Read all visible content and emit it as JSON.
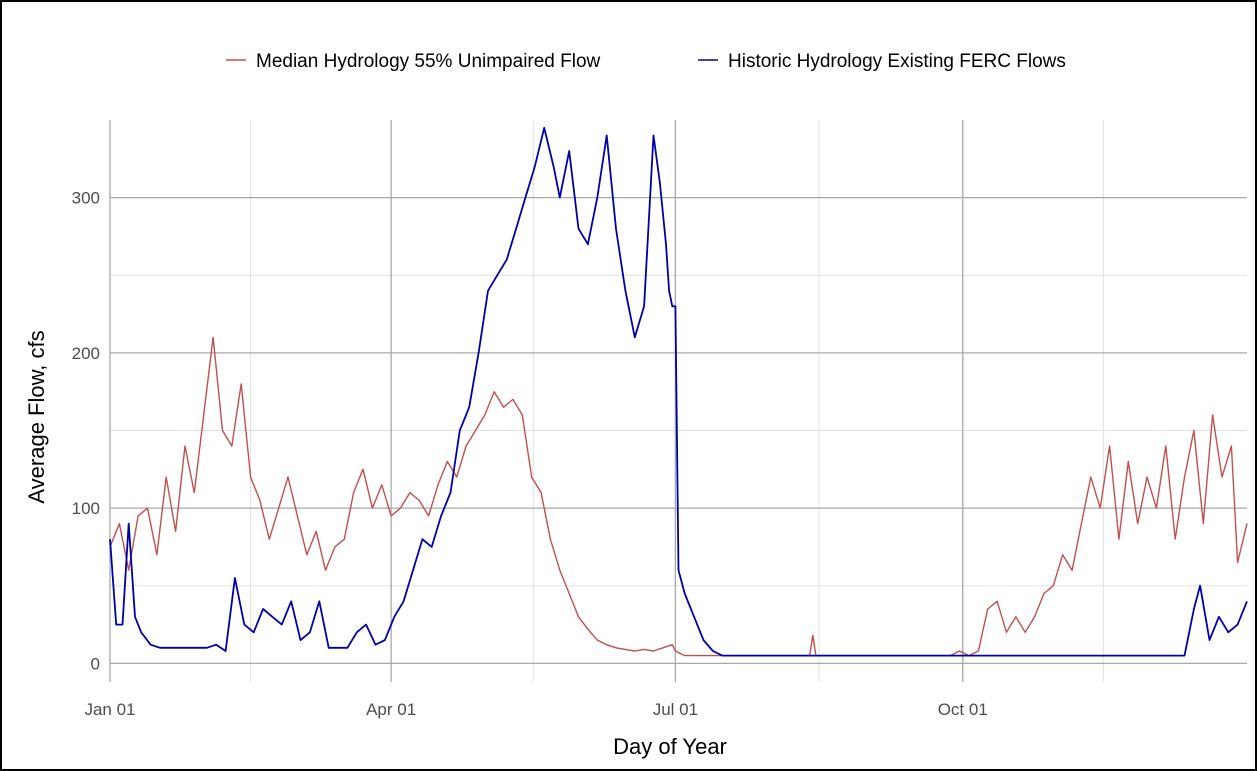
{
  "chart_data": {
    "type": "line",
    "title": "",
    "xlabel": "Day of Year",
    "ylabel": "Average Flow, cfs",
    "x_ticks": [
      "Jan 01",
      "Apr 01",
      "Jul 01",
      "Oct 01"
    ],
    "x_tick_days": [
      1,
      91,
      182,
      274
    ],
    "xlim": [
      1,
      365
    ],
    "y_ticks": [
      0,
      100,
      200,
      300
    ],
    "ylim": [
      -12,
      350
    ],
    "grid": true,
    "legend_position": "top",
    "x_unit": "day of year",
    "series": [
      {
        "name": "Median Hydrology 55% Unimpaired Flow",
        "color": "#c0504d",
        "x": [
          1,
          4,
          7,
          10,
          13,
          16,
          19,
          22,
          25,
          28,
          31,
          34,
          37,
          40,
          43,
          46,
          49,
          52,
          55,
          58,
          61,
          64,
          67,
          70,
          73,
          76,
          79,
          82,
          85,
          88,
          91,
          94,
          97,
          100,
          103,
          106,
          109,
          112,
          115,
          118,
          121,
          124,
          127,
          130,
          133,
          136,
          139,
          142,
          145,
          148,
          151,
          154,
          157,
          160,
          163,
          166,
          169,
          172,
          175,
          178,
          181,
          182,
          185,
          200,
          225,
          226,
          227,
          260,
          270,
          273,
          276,
          279,
          282,
          285,
          288,
          291,
          294,
          297,
          300,
          303,
          306,
          309,
          312,
          315,
          318,
          321,
          324,
          327,
          330,
          333,
          336,
          339,
          342,
          345,
          348,
          351,
          354,
          357,
          360,
          362,
          365
        ],
        "y": [
          75,
          90,
          60,
          95,
          100,
          70,
          120,
          85,
          140,
          110,
          160,
          210,
          150,
          140,
          180,
          120,
          105,
          80,
          100,
          120,
          95,
          70,
          85,
          60,
          75,
          80,
          110,
          125,
          100,
          115,
          95,
          100,
          110,
          105,
          95,
          115,
          130,
          120,
          140,
          150,
          160,
          175,
          165,
          170,
          160,
          120,
          110,
          80,
          60,
          45,
          30,
          22,
          15,
          12,
          10,
          9,
          8,
          9,
          8,
          10,
          12,
          8,
          5,
          5,
          5,
          18,
          5,
          5,
          5,
          8,
          5,
          8,
          35,
          40,
          20,
          30,
          20,
          30,
          45,
          50,
          70,
          60,
          90,
          120,
          100,
          140,
          80,
          130,
          90,
          120,
          100,
          140,
          80,
          120,
          150,
          90,
          160,
          120,
          140,
          65,
          90
        ]
      },
      {
        "name": "Historic Hydrology Existing FERC Flows",
        "color": "#0000aa",
        "x": [
          1,
          3,
          5,
          7,
          9,
          11,
          14,
          17,
          20,
          23,
          26,
          29,
          32,
          35,
          38,
          41,
          44,
          47,
          50,
          53,
          56,
          59,
          62,
          65,
          68,
          71,
          74,
          77,
          80,
          83,
          86,
          89,
          92,
          95,
          98,
          101,
          104,
          107,
          110,
          113,
          116,
          119,
          122,
          125,
          128,
          131,
          134,
          137,
          140,
          143,
          145,
          148,
          151,
          154,
          157,
          160,
          163,
          166,
          169,
          172,
          175,
          177,
          179,
          180,
          181,
          182,
          183,
          185,
          188,
          191,
          194,
          197,
          200,
          230,
          250,
          270,
          285,
          300,
          330,
          345,
          348,
          350,
          353,
          356,
          359,
          362,
          365
        ],
        "y": [
          80,
          25,
          25,
          90,
          30,
          20,
          12,
          10,
          10,
          10,
          10,
          10,
          10,
          12,
          8,
          55,
          25,
          20,
          35,
          30,
          25,
          40,
          15,
          20,
          40,
          10,
          10,
          10,
          20,
          25,
          12,
          15,
          30,
          40,
          60,
          80,
          75,
          95,
          110,
          150,
          165,
          200,
          240,
          250,
          260,
          280,
          300,
          320,
          345,
          320,
          300,
          330,
          280,
          270,
          300,
          340,
          280,
          240,
          210,
          230,
          340,
          310,
          270,
          240,
          230,
          230,
          60,
          45,
          30,
          15,
          8,
          5,
          5,
          5,
          5,
          5,
          5,
          5,
          5,
          5,
          35,
          50,
          15,
          30,
          20,
          25,
          40
        ]
      }
    ]
  }
}
